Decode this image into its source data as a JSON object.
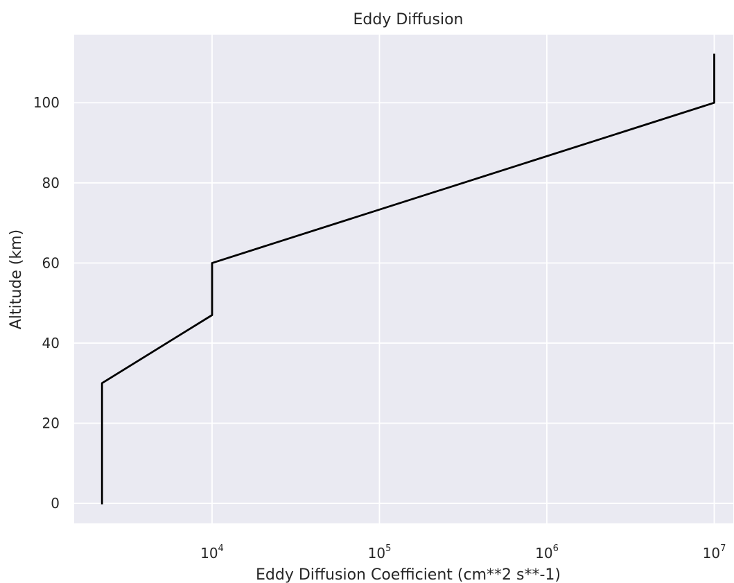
{
  "chart_data": {
    "type": "line",
    "title": "Eddy Diffusion",
    "xlabel": "Eddy Diffusion Coefficient (cm**2 s**-1)",
    "ylabel": "Altitude (km)",
    "xscale": "log",
    "xlim": [
      1500,
      13000000
    ],
    "ylim": [
      -5,
      117
    ],
    "grid": true,
    "colors": {
      "plot_background": "#EAEAF2",
      "grid": "#FFFFFF",
      "line": "#000000",
      "text": "#262626"
    },
    "x_ticks": [
      {
        "value": 10000,
        "base": "10",
        "exponent": "4"
      },
      {
        "value": 100000,
        "base": "10",
        "exponent": "5"
      },
      {
        "value": 1000000,
        "base": "10",
        "exponent": "6"
      },
      {
        "value": 10000000,
        "base": "10",
        "exponent": "7"
      }
    ],
    "y_ticks": [
      {
        "value": 0,
        "label": "0"
      },
      {
        "value": 20,
        "label": "20"
      },
      {
        "value": 40,
        "label": "40"
      },
      {
        "value": 60,
        "label": "60"
      },
      {
        "value": 80,
        "label": "80"
      },
      {
        "value": 100,
        "label": "100"
      }
    ],
    "series": [
      {
        "points": [
          {
            "x": 2200,
            "y": 0
          },
          {
            "x": 2200,
            "y": 30
          },
          {
            "x": 10000,
            "y": 47
          },
          {
            "x": 10000,
            "y": 60
          },
          {
            "x": 10000000,
            "y": 100
          },
          {
            "x": 10000000,
            "y": 112
          }
        ]
      }
    ]
  }
}
